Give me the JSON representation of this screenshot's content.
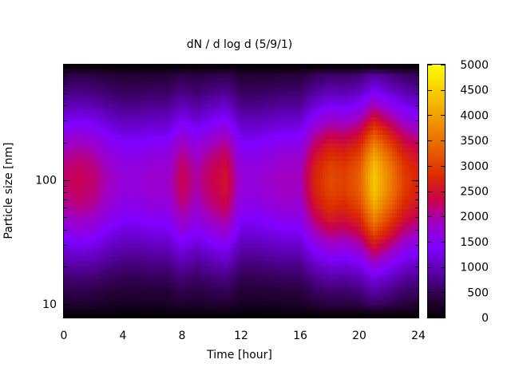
{
  "chart_data": {
    "type": "heatmap",
    "title": "dN / d log d (5/9/1)",
    "xlabel": "Time [hour]",
    "ylabel": "Particle size [nm]",
    "xlim": [
      0,
      24
    ],
    "x_ticks": [
      0,
      4,
      8,
      12,
      16,
      20,
      24
    ],
    "y_scale": "log",
    "ylim": [
      7.8,
      850
    ],
    "y_ticks": [
      10,
      100
    ],
    "colorbar": {
      "label": "",
      "range": [
        0,
        5000
      ],
      "ticks": [
        0,
        500,
        1000,
        1500,
        2000,
        2500,
        3000,
        3500,
        4000,
        4500,
        5000
      ],
      "colormap": "black-purple-red-orange-yellow"
    },
    "mode_diameter_nm": 100,
    "time_profile": {
      "time_hours": [
        0,
        1,
        2,
        3,
        4,
        5,
        6,
        7,
        8,
        9,
        10,
        11,
        12,
        13,
        14,
        15,
        16,
        17,
        18,
        19,
        20,
        21,
        22,
        23,
        24
      ],
      "peak_dN_dlogd": [
        2200,
        2300,
        2200,
        1900,
        1700,
        1700,
        1800,
        1800,
        2300,
        2000,
        2300,
        2500,
        1700,
        1700,
        1800,
        1900,
        1900,
        2700,
        3100,
        3000,
        3300,
        4400,
        3700,
        3000,
        2700
      ]
    },
    "grid": false,
    "legend": "colorbar-right"
  }
}
